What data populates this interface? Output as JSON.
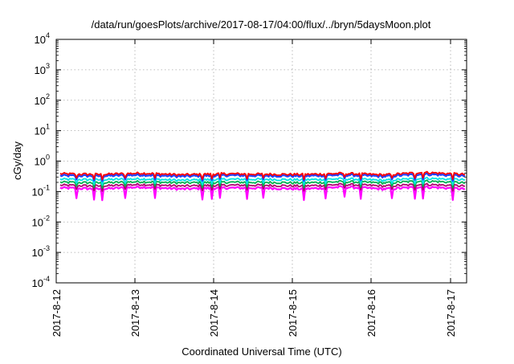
{
  "chart_data": {
    "type": "line",
    "title": "/data/run/goesPlots/archive/2017-08-17/04:00/flux/../bryn/5daysMoon.plot",
    "xlabel": "Coordinated Universal Time (UTC)",
    "ylabel": "cGy/day",
    "yscale": "log",
    "ylim": [
      0.0001,
      10000
    ],
    "y_tick_exponents": [
      -4,
      -3,
      -2,
      -1,
      0,
      1,
      2,
      3,
      4
    ],
    "y_tick_base": "10",
    "xlim": [
      "2017-08-12",
      "2017-08-17 06:00"
    ],
    "x_ticks": [
      "2017-8-12",
      "2017-8-13",
      "2017-8-14",
      "2017-8-15",
      "2017-8-16",
      "2017-8-17"
    ],
    "grid": true,
    "legend": "none",
    "series_style": [
      {
        "color": "#ff0000"
      },
      {
        "color": "#1f3fff"
      },
      {
        "color": "#00e5e5"
      },
      {
        "color": "#00b050"
      },
      {
        "color": "#b00070"
      },
      {
        "color": "#ff00ff"
      }
    ],
    "series": [
      {
        "values_approx": [
          0.38,
          0.36,
          0.4,
          0.35,
          0.38,
          0.37,
          0.36,
          0.39,
          0.35,
          0.42,
          0.36
        ]
      },
      {
        "values_approx": [
          0.33,
          0.32,
          0.35,
          0.31,
          0.34,
          0.33,
          0.32,
          0.35,
          0.31,
          0.37,
          0.32
        ]
      },
      {
        "values_approx": [
          0.25,
          0.24,
          0.26,
          0.23,
          0.25,
          0.25,
          0.24,
          0.26,
          0.23,
          0.27,
          0.24
        ]
      },
      {
        "values_approx": [
          0.2,
          0.19,
          0.21,
          0.19,
          0.2,
          0.2,
          0.19,
          0.21,
          0.19,
          0.22,
          0.19
        ]
      },
      {
        "values_approx": [
          0.16,
          0.15,
          0.17,
          0.15,
          0.16,
          0.16,
          0.15,
          0.17,
          0.15,
          0.17,
          0.15
        ]
      },
      {
        "values_approx": [
          0.13,
          0.12,
          0.14,
          0.12,
          0.13,
          0.13,
          0.12,
          0.14,
          0.12,
          0.14,
          0.12
        ],
        "min_dips": [
          0.07,
          0.06,
          0.05,
          0.06,
          0.05,
          0.04,
          0.06,
          0.07,
          0.06,
          0.05
        ]
      }
    ]
  }
}
